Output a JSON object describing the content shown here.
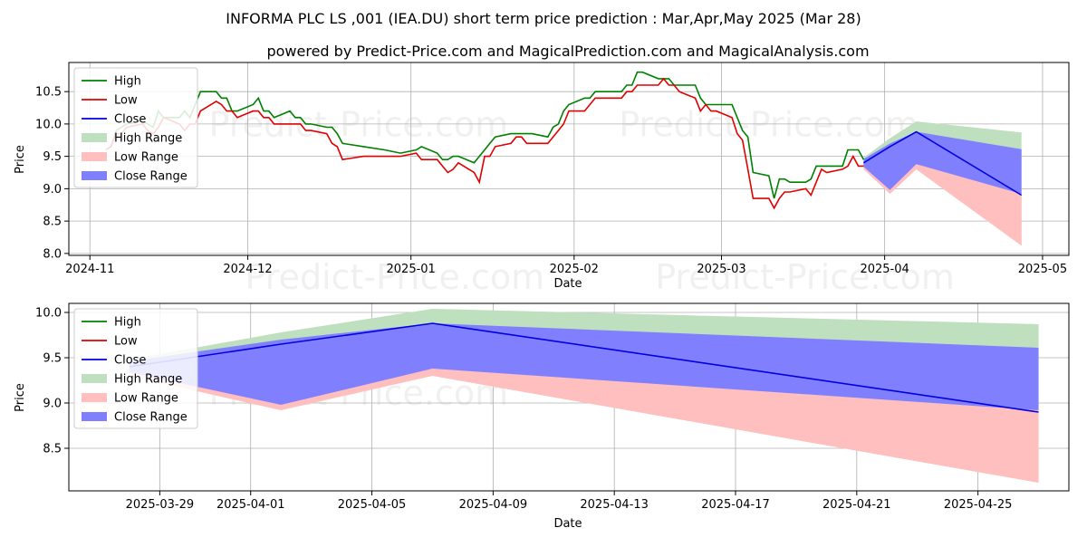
{
  "title": "INFORMA PLC LS ,001 (IEA.DU) short term price prediction : Mar,Apr,May 2025 (Mar 28)",
  "subtitle": "powered by Predict-Price.com and MagicalPrediction.com and MagicalAnalysis.com",
  "watermark": "Predict-Price.com",
  "colors": {
    "high": "#008000",
    "low": "#e00000",
    "close": "#0000e0",
    "high_range": "#bfe0bf",
    "low_range": "#ffbfbf",
    "close_range": "#8080ff",
    "grid": "#b0b0b0"
  },
  "chart_data": [
    {
      "type": "line",
      "xlabel": "Date",
      "ylabel": "Price",
      "xlim": [
        "2024-10-28",
        "2025-05-06"
      ],
      "ylim": [
        7.97,
        10.95
      ],
      "xticks": [
        {
          "date": "2024-11-01",
          "label": "2024-11"
        },
        {
          "date": "2024-12-01",
          "label": "2024-12"
        },
        {
          "date": "2025-01-01",
          "label": "2025-01"
        },
        {
          "date": "2025-02-01",
          "label": "2025-02"
        },
        {
          "date": "2025-03-01",
          "label": "2025-03"
        },
        {
          "date": "2025-04-01",
          "label": "2025-04"
        },
        {
          "date": "2025-05-01",
          "label": "2025-05"
        }
      ],
      "yticks": [
        8.0,
        8.5,
        9.0,
        9.5,
        10.0,
        10.5
      ],
      "grid": true,
      "legend_position": "top-left",
      "legend": [
        "High",
        "Low",
        "Close",
        "High Range",
        "Low Range",
        "Close Range"
      ],
      "series": [
        {
          "name": "High",
          "points": [
            [
              "2024-11-04",
              9.6
            ],
            [
              "2024-11-05",
              9.65
            ],
            [
              "2024-11-06",
              9.9
            ],
            [
              "2024-11-07",
              9.95
            ],
            [
              "2024-11-08",
              10.0
            ],
            [
              "2024-11-11",
              10.05
            ],
            [
              "2024-11-12",
              10.0
            ],
            [
              "2024-11-13",
              9.95
            ],
            [
              "2024-11-14",
              10.2
            ],
            [
              "2024-11-15",
              10.1
            ],
            [
              "2024-11-18",
              10.1
            ],
            [
              "2024-11-19",
              10.2
            ],
            [
              "2024-11-20",
              10.1
            ],
            [
              "2024-11-21",
              10.3
            ],
            [
              "2024-11-22",
              10.5
            ],
            [
              "2024-11-25",
              10.5
            ],
            [
              "2024-11-26",
              10.4
            ],
            [
              "2024-11-27",
              10.4
            ],
            [
              "2024-11-28",
              10.2
            ],
            [
              "2024-11-29",
              10.2
            ],
            [
              "2024-12-02",
              10.3
            ],
            [
              "2024-12-03",
              10.4
            ],
            [
              "2024-12-04",
              10.2
            ],
            [
              "2024-12-05",
              10.2
            ],
            [
              "2024-12-06",
              10.1
            ],
            [
              "2024-12-09",
              10.2
            ],
            [
              "2024-12-10",
              10.1
            ],
            [
              "2024-12-11",
              10.1
            ],
            [
              "2024-12-12",
              10.0
            ],
            [
              "2024-12-13",
              10.0
            ],
            [
              "2024-12-16",
              9.95
            ],
            [
              "2024-12-17",
              9.95
            ],
            [
              "2024-12-18",
              9.85
            ],
            [
              "2024-12-19",
              9.7
            ],
            [
              "2024-12-23",
              9.65
            ],
            [
              "2024-12-27",
              9.6
            ],
            [
              "2024-12-30",
              9.55
            ],
            [
              "2025-01-02",
              9.6
            ],
            [
              "2025-01-03",
              9.65
            ],
            [
              "2025-01-06",
              9.55
            ],
            [
              "2025-01-07",
              9.45
            ],
            [
              "2025-01-08",
              9.45
            ],
            [
              "2025-01-09",
              9.5
            ],
            [
              "2025-01-10",
              9.5
            ],
            [
              "2025-01-13",
              9.4
            ],
            [
              "2025-01-14",
              9.5
            ],
            [
              "2025-01-15",
              9.6
            ],
            [
              "2025-01-16",
              9.7
            ],
            [
              "2025-01-17",
              9.8
            ],
            [
              "2025-01-20",
              9.85
            ],
            [
              "2025-01-21",
              9.85
            ],
            [
              "2025-01-22",
              9.85
            ],
            [
              "2025-01-23",
              9.85
            ],
            [
              "2025-01-24",
              9.85
            ],
            [
              "2025-01-27",
              9.8
            ],
            [
              "2025-01-28",
              9.95
            ],
            [
              "2025-01-29",
              10.0
            ],
            [
              "2025-01-30",
              10.2
            ],
            [
              "2025-01-31",
              10.3
            ],
            [
              "2025-02-03",
              10.4
            ],
            [
              "2025-02-04",
              10.4
            ],
            [
              "2025-02-05",
              10.5
            ],
            [
              "2025-02-06",
              10.5
            ],
            [
              "2025-02-07",
              10.5
            ],
            [
              "2025-02-10",
              10.5
            ],
            [
              "2025-02-11",
              10.6
            ],
            [
              "2025-02-12",
              10.6
            ],
            [
              "2025-02-13",
              10.8
            ],
            [
              "2025-02-14",
              10.8
            ],
            [
              "2025-02-17",
              10.7
            ],
            [
              "2025-02-18",
              10.7
            ],
            [
              "2025-02-19",
              10.7
            ],
            [
              "2025-02-20",
              10.6
            ],
            [
              "2025-02-21",
              10.6
            ],
            [
              "2025-02-24",
              10.6
            ],
            [
              "2025-02-25",
              10.4
            ],
            [
              "2025-02-26",
              10.3
            ],
            [
              "2025-02-27",
              10.3
            ],
            [
              "2025-02-28",
              10.3
            ],
            [
              "2025-03-03",
              10.3
            ],
            [
              "2025-03-04",
              10.1
            ],
            [
              "2025-03-05",
              9.9
            ],
            [
              "2025-03-06",
              9.8
            ],
            [
              "2025-03-07",
              9.25
            ],
            [
              "2025-03-10",
              9.2
            ],
            [
              "2025-03-11",
              8.85
            ],
            [
              "2025-03-12",
              9.15
            ],
            [
              "2025-03-13",
              9.15
            ],
            [
              "2025-03-14",
              9.1
            ],
            [
              "2025-03-17",
              9.1
            ],
            [
              "2025-03-18",
              9.15
            ],
            [
              "2025-03-19",
              9.35
            ],
            [
              "2025-03-20",
              9.35
            ],
            [
              "2025-03-21",
              9.35
            ],
            [
              "2025-03-24",
              9.35
            ],
            [
              "2025-03-25",
              9.6
            ],
            [
              "2025-03-26",
              9.6
            ],
            [
              "2025-03-27",
              9.6
            ],
            [
              "2025-03-28",
              9.45
            ]
          ]
        },
        {
          "name": "Low",
          "points": [
            [
              "2024-11-04",
              9.6
            ],
            [
              "2024-11-05",
              9.65
            ],
            [
              "2024-11-06",
              9.85
            ],
            [
              "2024-11-07",
              9.85
            ],
            [
              "2024-11-08",
              9.95
            ],
            [
              "2024-11-11",
              10.0
            ],
            [
              "2024-11-12",
              9.9
            ],
            [
              "2024-11-13",
              9.85
            ],
            [
              "2024-11-14",
              9.95
            ],
            [
              "2024-11-15",
              10.1
            ],
            [
              "2024-11-18",
              10.0
            ],
            [
              "2024-11-19",
              9.9
            ],
            [
              "2024-11-20",
              10.0
            ],
            [
              "2024-11-21",
              10.0
            ],
            [
              "2024-11-22",
              10.2
            ],
            [
              "2024-11-25",
              10.35
            ],
            [
              "2024-11-26",
              10.3
            ],
            [
              "2024-11-27",
              10.2
            ],
            [
              "2024-11-28",
              10.2
            ],
            [
              "2024-11-29",
              10.1
            ],
            [
              "2024-12-02",
              10.2
            ],
            [
              "2024-12-03",
              10.2
            ],
            [
              "2024-12-04",
              10.1
            ],
            [
              "2024-12-05",
              10.1
            ],
            [
              "2024-12-06",
              10.0
            ],
            [
              "2024-12-09",
              10.0
            ],
            [
              "2024-12-10",
              10.0
            ],
            [
              "2024-12-11",
              10.0
            ],
            [
              "2024-12-12",
              9.9
            ],
            [
              "2024-12-13",
              9.9
            ],
            [
              "2024-12-16",
              9.85
            ],
            [
              "2024-12-17",
              9.7
            ],
            [
              "2024-12-18",
              9.65
            ],
            [
              "2024-12-19",
              9.45
            ],
            [
              "2024-12-23",
              9.5
            ],
            [
              "2024-12-27",
              9.5
            ],
            [
              "2024-12-30",
              9.5
            ],
            [
              "2025-01-02",
              9.55
            ],
            [
              "2025-01-03",
              9.45
            ],
            [
              "2025-01-06",
              9.45
            ],
            [
              "2025-01-07",
              9.35
            ],
            [
              "2025-01-08",
              9.25
            ],
            [
              "2025-01-09",
              9.3
            ],
            [
              "2025-01-10",
              9.4
            ],
            [
              "2025-01-13",
              9.25
            ],
            [
              "2025-01-14",
              9.1
            ],
            [
              "2025-01-15",
              9.5
            ],
            [
              "2025-01-16",
              9.5
            ],
            [
              "2025-01-17",
              9.65
            ],
            [
              "2025-01-20",
              9.7
            ],
            [
              "2025-01-21",
              9.8
            ],
            [
              "2025-01-22",
              9.8
            ],
            [
              "2025-01-23",
              9.7
            ],
            [
              "2025-01-24",
              9.7
            ],
            [
              "2025-01-27",
              9.7
            ],
            [
              "2025-01-28",
              9.8
            ],
            [
              "2025-01-29",
              9.9
            ],
            [
              "2025-01-30",
              10.0
            ],
            [
              "2025-01-31",
              10.2
            ],
            [
              "2025-02-03",
              10.2
            ],
            [
              "2025-02-04",
              10.3
            ],
            [
              "2025-02-05",
              10.4
            ],
            [
              "2025-02-06",
              10.4
            ],
            [
              "2025-02-07",
              10.4
            ],
            [
              "2025-02-10",
              10.4
            ],
            [
              "2025-02-11",
              10.5
            ],
            [
              "2025-02-12",
              10.5
            ],
            [
              "2025-02-13",
              10.6
            ],
            [
              "2025-02-14",
              10.6
            ],
            [
              "2025-02-17",
              10.6
            ],
            [
              "2025-02-18",
              10.7
            ],
            [
              "2025-02-19",
              10.6
            ],
            [
              "2025-02-20",
              10.6
            ],
            [
              "2025-02-21",
              10.5
            ],
            [
              "2025-02-24",
              10.4
            ],
            [
              "2025-02-25",
              10.2
            ],
            [
              "2025-02-26",
              10.3
            ],
            [
              "2025-02-27",
              10.2
            ],
            [
              "2025-02-28",
              10.2
            ],
            [
              "2025-03-03",
              10.1
            ],
            [
              "2025-03-04",
              9.85
            ],
            [
              "2025-03-05",
              9.75
            ],
            [
              "2025-03-06",
              9.3
            ],
            [
              "2025-03-07",
              8.85
            ],
            [
              "2025-03-10",
              8.85
            ],
            [
              "2025-03-11",
              8.7
            ],
            [
              "2025-03-12",
              8.85
            ],
            [
              "2025-03-13",
              8.95
            ],
            [
              "2025-03-14",
              8.95
            ],
            [
              "2025-03-17",
              9.0
            ],
            [
              "2025-03-18",
              8.9
            ],
            [
              "2025-03-19",
              9.1
            ],
            [
              "2025-03-20",
              9.3
            ],
            [
              "2025-03-21",
              9.25
            ],
            [
              "2025-03-24",
              9.3
            ],
            [
              "2025-03-25",
              9.35
            ],
            [
              "2025-03-26",
              9.5
            ],
            [
              "2025-03-27",
              9.35
            ],
            [
              "2025-03-28",
              9.35
            ]
          ]
        }
      ],
      "forecast": {
        "dates": [
          "2025-03-28",
          "2025-04-02",
          "2025-04-07",
          "2025-04-27"
        ],
        "close": [
          9.4,
          9.65,
          9.88,
          8.9
        ],
        "high_range": {
          "upper": [
            9.48,
            9.78,
            10.04,
            9.87
          ],
          "lower": [
            9.33,
            8.94,
            9.3,
            8.12
          ]
        },
        "close_range": {
          "upper": [
            9.46,
            9.7,
            9.88,
            9.61
          ],
          "lower": [
            9.34,
            8.98,
            9.38,
            8.92
          ]
        },
        "low_range": {
          "upper": [
            9.43,
            9.6,
            9.39,
            8.92
          ],
          "lower": [
            9.3,
            8.92,
            9.3,
            8.12
          ]
        }
      }
    },
    {
      "type": "line",
      "xlabel": "Date",
      "ylabel": "Price",
      "xlim": [
        "2025-03-26",
        "2025-04-28"
      ],
      "ylim": [
        8.03,
        10.1
      ],
      "xticks": [
        {
          "date": "2025-03-29",
          "label": "2025-03-29"
        },
        {
          "date": "2025-04-01",
          "label": "2025-04-01"
        },
        {
          "date": "2025-04-05",
          "label": "2025-04-05"
        },
        {
          "date": "2025-04-09",
          "label": "2025-04-09"
        },
        {
          "date": "2025-04-13",
          "label": "2025-04-13"
        },
        {
          "date": "2025-04-17",
          "label": "2025-04-17"
        },
        {
          "date": "2025-04-21",
          "label": "2025-04-21"
        },
        {
          "date": "2025-04-25",
          "label": "2025-04-25"
        }
      ],
      "yticks": [
        8.5,
        9.0,
        9.5,
        10.0
      ],
      "grid": true,
      "legend_position": "top-left",
      "legend": [
        "High",
        "Low",
        "Close",
        "High Range",
        "Low Range",
        "Close Range"
      ],
      "series": [],
      "forecast": {
        "dates": [
          "2025-03-28",
          "2025-04-02",
          "2025-04-07",
          "2025-04-27"
        ],
        "close": [
          9.4,
          9.65,
          9.88,
          8.9
        ],
        "high_range": {
          "upper": [
            9.48,
            9.78,
            10.04,
            9.87
          ],
          "lower": [
            9.33,
            8.94,
            9.3,
            8.12
          ]
        },
        "close_range": {
          "upper": [
            9.46,
            9.7,
            9.88,
            9.61
          ],
          "lower": [
            9.34,
            8.98,
            9.38,
            8.92
          ]
        },
        "low_range": {
          "upper": [
            9.43,
            9.6,
            9.39,
            8.92
          ],
          "lower": [
            9.3,
            8.92,
            9.3,
            8.12
          ]
        }
      }
    }
  ]
}
